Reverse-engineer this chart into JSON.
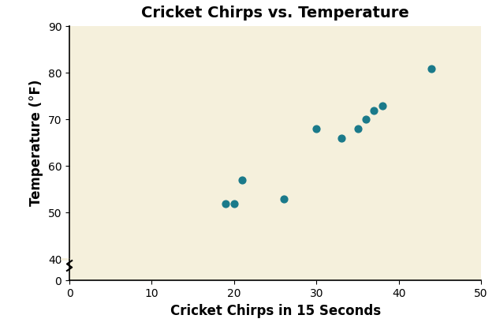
{
  "title": "Cricket Chirps vs. Temperature",
  "xlabel": "Cricket Chirps in 15 Seconds",
  "ylabel": "Temperature (°F)",
  "x_data": [
    19,
    20,
    21,
    26,
    30,
    33,
    35,
    36,
    37,
    38,
    44
  ],
  "y_data": [
    52,
    52,
    57,
    53,
    68,
    66,
    68,
    70,
    72,
    73,
    81
  ],
  "xlim": [
    0,
    50
  ],
  "ylim_main": [
    40,
    90
  ],
  "ylim_stub": [
    0,
    5
  ],
  "xticks": [
    0,
    10,
    20,
    30,
    40,
    50
  ],
  "yticks_main": [
    40,
    50,
    60,
    70,
    80,
    90
  ],
  "yticks_stub": [
    0
  ],
  "marker_color": "#1a7a8a",
  "marker_size": 40,
  "bg_color": "#f5f0dc",
  "title_fontsize": 14,
  "label_fontsize": 12,
  "tick_labelsize": 10
}
